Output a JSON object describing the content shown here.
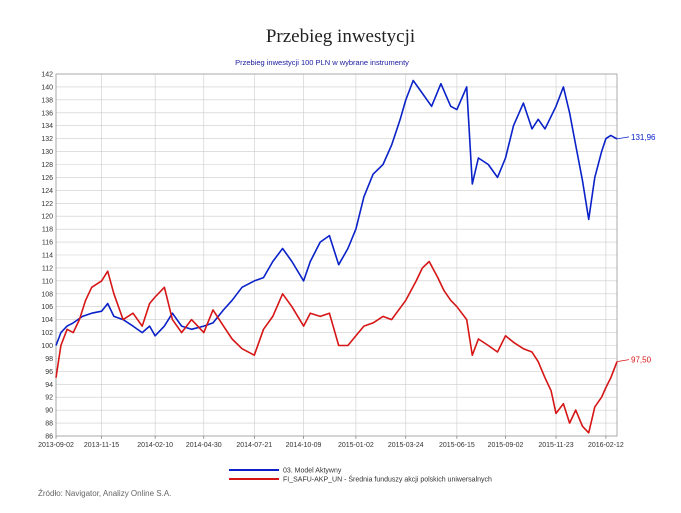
{
  "page": {
    "title": "Przebieg inwestycji",
    "source": "Źródło: Navigator, Analizy Online S.A."
  },
  "colors": {
    "series_1": "#0a22c8",
    "series_2": "#d61616",
    "subtitle": "#1a1aa0",
    "grid": "#cccccc"
  },
  "chart_data": {
    "type": "line",
    "title": "Przebieg inwestycji 100 PLN w wybrane instrumenty",
    "xlabel": "",
    "ylabel": "",
    "ylim": [
      86,
      142
    ],
    "grid": true,
    "legend_placement": "bottom-center",
    "x_ticks": [
      "2013-09-02",
      "2013-11-15",
      "2014-02-10",
      "2014-04-30",
      "2014-07-21",
      "2014-10-09",
      "2015-01-02",
      "2015-03-24",
      "2015-06-15",
      "2015-09-02",
      "2015-11-23",
      "2016-02-12"
    ],
    "y_ticks": [
      86,
      88,
      90,
      92,
      94,
      96,
      98,
      100,
      102,
      104,
      106,
      108,
      110,
      112,
      114,
      116,
      118,
      120,
      122,
      124,
      126,
      128,
      130,
      132,
      134,
      136,
      138,
      140,
      142
    ],
    "series": [
      {
        "name": "03. Model Aktywny",
        "color": "#0a22c8",
        "end_label": "131,96",
        "points": [
          [
            "2013-09-02",
            100.0
          ],
          [
            "2013-09-10",
            102.0
          ],
          [
            "2013-09-20",
            103.0
          ],
          [
            "2013-09-30",
            103.5
          ],
          [
            "2013-10-15",
            104.5
          ],
          [
            "2013-10-30",
            105.0
          ],
          [
            "2013-11-15",
            105.3
          ],
          [
            "2013-11-25",
            106.5
          ],
          [
            "2013-12-05",
            104.5
          ],
          [
            "2013-12-20",
            104.0
          ],
          [
            "2014-01-05",
            103.0
          ],
          [
            "2014-01-20",
            102.0
          ],
          [
            "2014-02-01",
            103.0
          ],
          [
            "2014-02-10",
            101.5
          ],
          [
            "2014-02-25",
            103.0
          ],
          [
            "2014-03-10",
            105.0
          ],
          [
            "2014-03-25",
            103.0
          ],
          [
            "2014-04-10",
            102.5
          ],
          [
            "2014-04-30",
            103.0
          ],
          [
            "2014-05-15",
            103.5
          ],
          [
            "2014-06-01",
            105.5
          ],
          [
            "2014-06-15",
            107.0
          ],
          [
            "2014-07-01",
            109.0
          ],
          [
            "2014-07-21",
            110.0
          ],
          [
            "2014-08-05",
            110.5
          ],
          [
            "2014-08-20",
            113.0
          ],
          [
            "2014-09-05",
            115.0
          ],
          [
            "2014-09-20",
            113.0
          ],
          [
            "2014-10-09",
            110.0
          ],
          [
            "2014-10-20",
            113.0
          ],
          [
            "2014-11-05",
            116.0
          ],
          [
            "2014-11-20",
            117.0
          ],
          [
            "2014-12-05",
            112.5
          ],
          [
            "2014-12-20",
            115.0
          ],
          [
            "2015-01-02",
            118.0
          ],
          [
            "2015-01-15",
            123.0
          ],
          [
            "2015-01-30",
            126.5
          ],
          [
            "2015-02-15",
            128.0
          ],
          [
            "2015-03-01",
            131.0
          ],
          [
            "2015-03-15",
            135.0
          ],
          [
            "2015-03-24",
            138.0
          ],
          [
            "2015-04-05",
            141.0
          ],
          [
            "2015-04-20",
            139.0
          ],
          [
            "2015-05-05",
            137.0
          ],
          [
            "2015-05-20",
            140.5
          ],
          [
            "2015-06-05",
            137.0
          ],
          [
            "2015-06-15",
            136.5
          ],
          [
            "2015-07-01",
            140.0
          ],
          [
            "2015-07-10",
            125.0
          ],
          [
            "2015-07-20",
            129.0
          ],
          [
            "2015-08-05",
            128.0
          ],
          [
            "2015-08-20",
            126.0
          ],
          [
            "2015-09-02",
            129.0
          ],
          [
            "2015-09-15",
            134.0
          ],
          [
            "2015-10-01",
            137.5
          ],
          [
            "2015-10-15",
            133.5
          ],
          [
            "2015-10-25",
            135.0
          ],
          [
            "2015-11-05",
            133.5
          ],
          [
            "2015-11-23",
            137.0
          ],
          [
            "2015-12-05",
            140.0
          ],
          [
            "2015-12-15",
            136.0
          ],
          [
            "2015-12-25",
            131.0
          ],
          [
            "2016-01-05",
            125.5
          ],
          [
            "2016-01-15",
            119.5
          ],
          [
            "2016-01-25",
            126.0
          ],
          [
            "2016-02-05",
            130.0
          ],
          [
            "2016-02-12",
            132.0
          ],
          [
            "2016-02-20",
            132.5
          ],
          [
            "2016-03-01",
            131.96
          ]
        ]
      },
      {
        "name": "FI_SAFU-AKP_UN - Średnia funduszy akcji polskich uniwersalnych",
        "color": "#d61616",
        "end_label": "97,50",
        "points": [
          [
            "2013-09-02",
            95.0
          ],
          [
            "2013-09-10",
            100.0
          ],
          [
            "2013-09-20",
            102.5
          ],
          [
            "2013-09-30",
            102.0
          ],
          [
            "2013-10-10",
            104.0
          ],
          [
            "2013-10-20",
            107.0
          ],
          [
            "2013-10-30",
            109.0
          ],
          [
            "2013-11-15",
            110.0
          ],
          [
            "2013-11-25",
            111.5
          ],
          [
            "2013-12-05",
            108.0
          ],
          [
            "2013-12-20",
            104.0
          ],
          [
            "2014-01-05",
            105.0
          ],
          [
            "2014-01-20",
            103.0
          ],
          [
            "2014-02-01",
            106.5
          ],
          [
            "2014-02-10",
            107.5
          ],
          [
            "2014-02-25",
            109.0
          ],
          [
            "2014-03-10",
            104.0
          ],
          [
            "2014-03-25",
            102.0
          ],
          [
            "2014-04-10",
            104.0
          ],
          [
            "2014-04-30",
            102.0
          ],
          [
            "2014-05-15",
            105.5
          ],
          [
            "2014-06-01",
            103.0
          ],
          [
            "2014-06-15",
            101.0
          ],
          [
            "2014-07-01",
            99.5
          ],
          [
            "2014-07-21",
            98.5
          ],
          [
            "2014-08-05",
            102.5
          ],
          [
            "2014-08-20",
            104.5
          ],
          [
            "2014-09-05",
            108.0
          ],
          [
            "2014-09-20",
            106.0
          ],
          [
            "2014-10-09",
            103.0
          ],
          [
            "2014-10-20",
            105.0
          ],
          [
            "2014-11-05",
            104.5
          ],
          [
            "2014-11-20",
            105.0
          ],
          [
            "2014-12-05",
            100.0
          ],
          [
            "2014-12-20",
            100.0
          ],
          [
            "2015-01-02",
            101.5
          ],
          [
            "2015-01-15",
            103.0
          ],
          [
            "2015-01-30",
            103.5
          ],
          [
            "2015-02-15",
            104.5
          ],
          [
            "2015-03-01",
            104.0
          ],
          [
            "2015-03-24",
            107.0
          ],
          [
            "2015-04-10",
            110.0
          ],
          [
            "2015-04-20",
            112.0
          ],
          [
            "2015-05-01",
            113.0
          ],
          [
            "2015-05-15",
            110.5
          ],
          [
            "2015-05-25",
            108.5
          ],
          [
            "2015-06-05",
            107.0
          ],
          [
            "2015-06-15",
            106.0
          ],
          [
            "2015-07-01",
            104.0
          ],
          [
            "2015-07-10",
            98.5
          ],
          [
            "2015-07-20",
            101.0
          ],
          [
            "2015-08-05",
            100.0
          ],
          [
            "2015-08-20",
            99.0
          ],
          [
            "2015-09-02",
            101.5
          ],
          [
            "2015-09-15",
            100.5
          ],
          [
            "2015-10-01",
            99.5
          ],
          [
            "2015-10-15",
            99.0
          ],
          [
            "2015-10-25",
            97.5
          ],
          [
            "2015-11-05",
            95.0
          ],
          [
            "2015-11-15",
            93.0
          ],
          [
            "2015-11-23",
            89.5
          ],
          [
            "2015-12-05",
            91.0
          ],
          [
            "2015-12-15",
            88.0
          ],
          [
            "2015-12-25",
            90.0
          ],
          [
            "2016-01-05",
            87.5
          ],
          [
            "2016-01-15",
            86.5
          ],
          [
            "2016-01-25",
            90.5
          ],
          [
            "2016-02-05",
            92.0
          ],
          [
            "2016-02-12",
            93.5
          ],
          [
            "2016-02-20",
            95.0
          ],
          [
            "2016-03-01",
            97.5
          ]
        ]
      }
    ]
  }
}
